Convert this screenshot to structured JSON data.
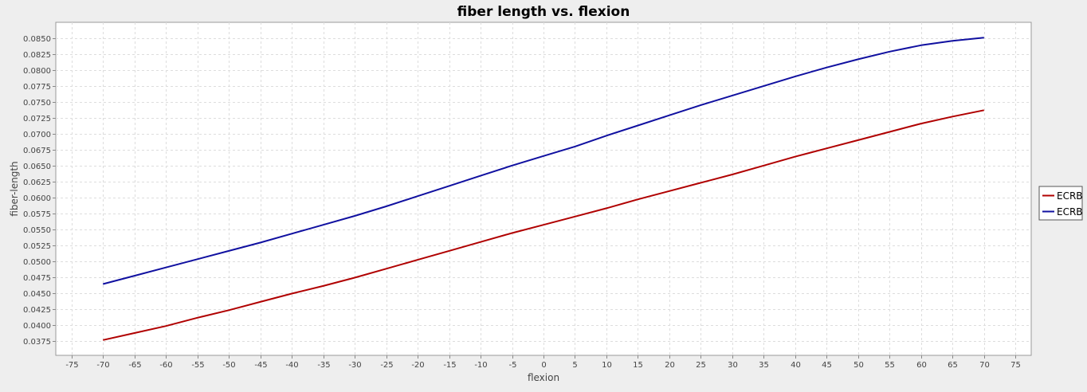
{
  "chart_data": {
    "type": "line",
    "title": "fiber length vs. flexion",
    "xlabel": "flexion",
    "ylabel": "fiber-length",
    "xlim": [
      -77.5,
      77.5
    ],
    "ylim": [
      0.0352,
      0.0875
    ],
    "x_ticks": [
      -75,
      -70,
      -65,
      -60,
      -55,
      -50,
      -45,
      -40,
      -35,
      -30,
      -25,
      -20,
      -15,
      -10,
      -5,
      0,
      5,
      10,
      15,
      20,
      25,
      30,
      35,
      40,
      45,
      50,
      55,
      60,
      65,
      70,
      75
    ],
    "y_ticks": [
      0.0375,
      0.04,
      0.0425,
      0.045,
      0.0475,
      0.05,
      0.0525,
      0.055,
      0.0575,
      0.06,
      0.0625,
      0.065,
      0.0675,
      0.07,
      0.0725,
      0.075,
      0.0775,
      0.08,
      0.0825,
      0.085
    ],
    "y_tick_labels": [
      "0.0375",
      "0.0400",
      "0.0425",
      "0.0450",
      "0.0475",
      "0.0500",
      "0.0525",
      "0.0550",
      "0.0575",
      "0.0600",
      "0.0625",
      "0.0650",
      "0.0675",
      "0.0700",
      "0.0725",
      "0.0750",
      "0.0775",
      "0.0800",
      "0.0825",
      "0.0850"
    ],
    "grid": true,
    "legend_position": "right",
    "x": [
      -70,
      -65,
      -60,
      -55,
      -50,
      -45,
      -40,
      -35,
      -30,
      -25,
      -20,
      -15,
      -10,
      -5,
      0,
      5,
      10,
      15,
      20,
      25,
      30,
      35,
      40,
      45,
      50,
      55,
      60,
      65,
      70
    ],
    "series": [
      {
        "name": "ECRB",
        "color": "#b00000",
        "values": [
          0.0376,
          0.0387,
          0.0398,
          0.0411,
          0.0423,
          0.0436,
          0.0449,
          0.0461,
          0.0474,
          0.0488,
          0.0502,
          0.0516,
          0.053,
          0.0544,
          0.0557,
          0.057,
          0.0583,
          0.0597,
          0.061,
          0.0623,
          0.0636,
          0.065,
          0.0664,
          0.0677,
          0.069,
          0.0703,
          0.0716,
          0.0727,
          0.0737
        ]
      },
      {
        "name": "ECRB",
        "color": "#1010a0",
        "values": [
          0.0464,
          0.0477,
          0.049,
          0.0503,
          0.0516,
          0.0529,
          0.0543,
          0.0557,
          0.0571,
          0.0586,
          0.0602,
          0.0618,
          0.0634,
          0.065,
          0.0665,
          0.068,
          0.0697,
          0.0713,
          0.0729,
          0.0745,
          0.076,
          0.0775,
          0.079,
          0.0804,
          0.0817,
          0.0829,
          0.0839,
          0.0846,
          0.0851
        ]
      }
    ]
  }
}
